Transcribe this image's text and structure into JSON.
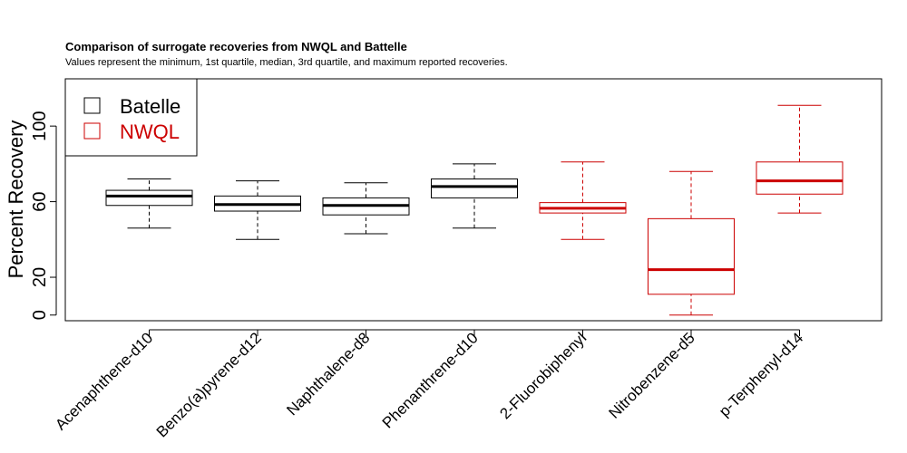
{
  "chart_data": {
    "type": "boxplot",
    "title": "Comparison of surrogate recoveries from NWQL and Battelle",
    "subtitle": "Values represent the minimum, 1st quartile, median, 3rd quartile, and maximum reported recoveries.",
    "ylabel": "Percent Recovery",
    "xlabel": "",
    "ylim": [
      -3,
      125
    ],
    "yticks": [
      0,
      20,
      60,
      100
    ],
    "grid": false,
    "legend_position": "top-left",
    "legend": [
      {
        "name": "Batelle",
        "color": "#000000"
      },
      {
        "name": "NWQL",
        "color": "#cc0000"
      }
    ],
    "categories": [
      "Acenaphthene-d10",
      "Benzo(a)pyrene-d12",
      "Naphthalene-d8",
      "Phenanthrene-d10",
      "2-Fluorobiphenyl",
      "Nitrobenzene-d5",
      "p-Terphenyl-d14"
    ],
    "boxes": [
      {
        "min": 46,
        "q1": 58,
        "median": 63,
        "q3": 66,
        "max": 72,
        "color": "#000000"
      },
      {
        "min": 40,
        "q1": 55,
        "median": 58.5,
        "q3": 63,
        "max": 71,
        "color": "#000000"
      },
      {
        "min": 43,
        "q1": 53,
        "median": 58,
        "q3": 62,
        "max": 70,
        "color": "#000000"
      },
      {
        "min": 46,
        "q1": 62,
        "median": 68,
        "q3": 72,
        "max": 80,
        "color": "#000000"
      },
      {
        "min": 40,
        "q1": 54,
        "median": 56.5,
        "q3": 59.5,
        "max": 81,
        "color": "#cc0000"
      },
      {
        "min": 0,
        "q1": 11,
        "median": 24,
        "q3": 51,
        "max": 76,
        "color": "#cc0000"
      },
      {
        "min": 54,
        "q1": 64,
        "median": 71,
        "q3": 81,
        "max": 111,
        "color": "#cc0000"
      }
    ]
  }
}
